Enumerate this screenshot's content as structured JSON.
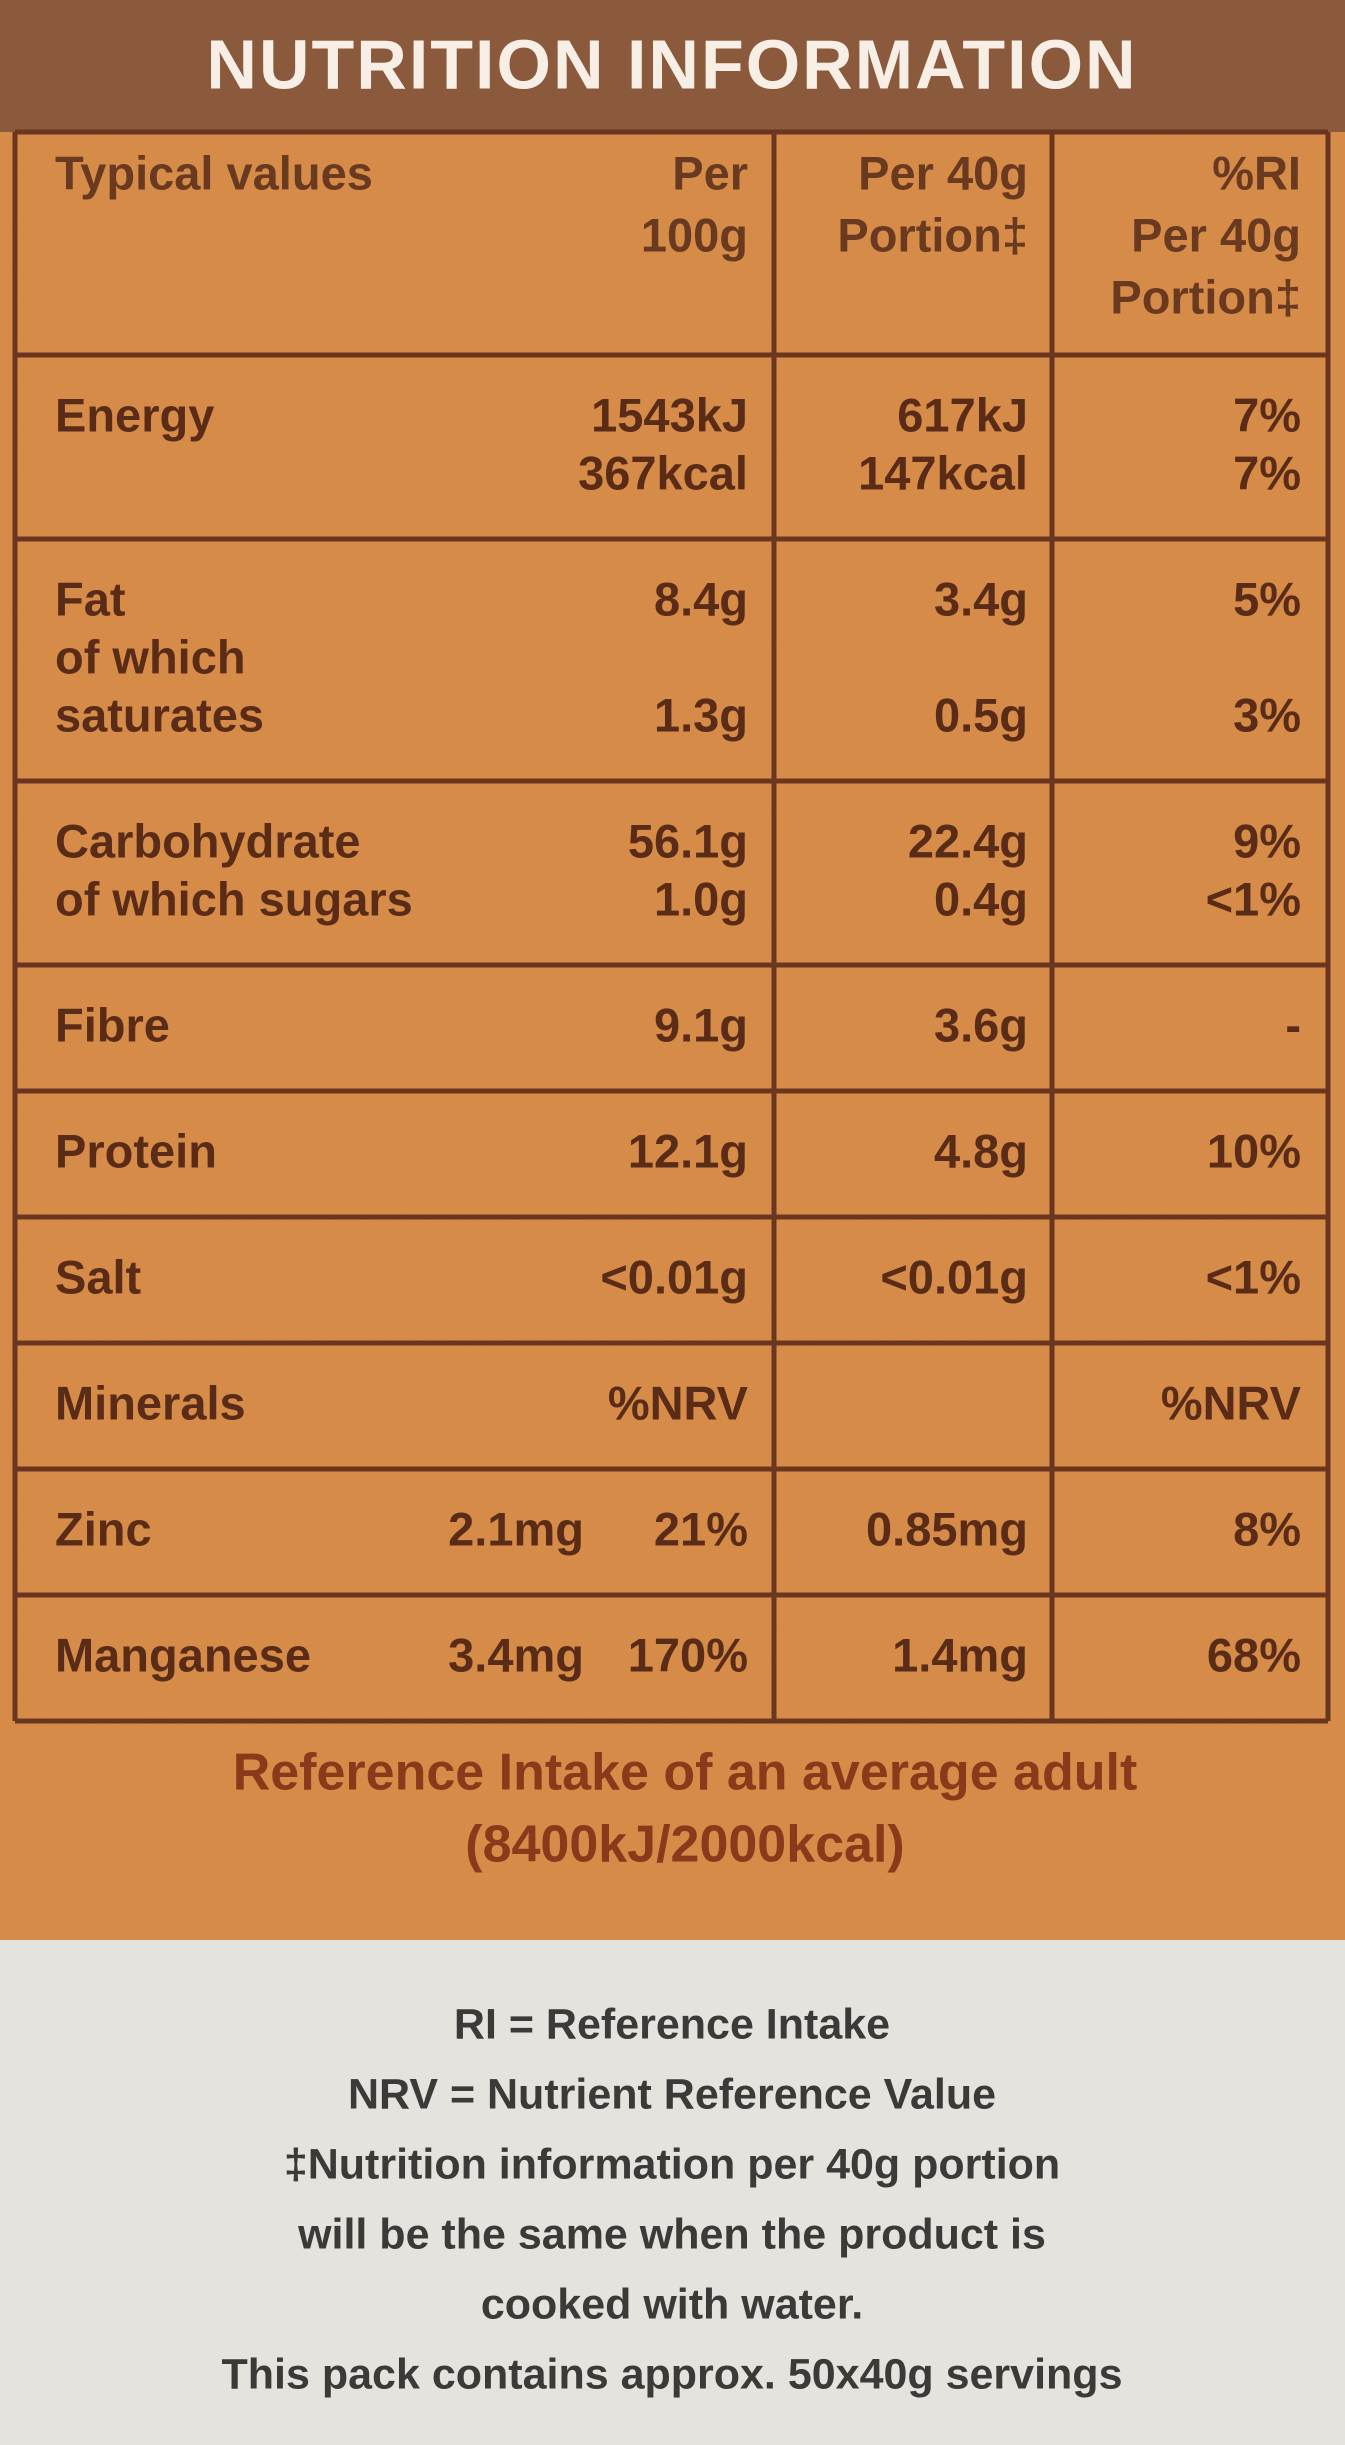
{
  "title": "NUTRITION INFORMATION",
  "table": {
    "columns": {
      "label": [
        "Typical values"
      ],
      "per100": [
        "Per",
        "100g"
      ],
      "portion": [
        "Per 40g",
        "Portion‡"
      ],
      "ri": [
        "%RI",
        "Per 40g",
        "Portion‡"
      ]
    },
    "rows": [
      {
        "entries": [
          {
            "label": [
              "Energy"
            ],
            "per100": [
              "1543kJ",
              "367kcal"
            ],
            "portion": [
              "617kJ",
              "147kcal"
            ],
            "ri": [
              "7%",
              "7%"
            ]
          }
        ]
      },
      {
        "entries": [
          {
            "label": [
              "Fat"
            ],
            "per100": [
              "8.4g"
            ],
            "portion": [
              "3.4g"
            ],
            "ri": [
              "5%"
            ]
          },
          {
            "label": [
              "of which",
              "saturates"
            ],
            "per100": [
              "1.3g"
            ],
            "portion": [
              "0.5g"
            ],
            "ri": [
              "3%"
            ]
          }
        ]
      },
      {
        "entries": [
          {
            "label": [
              "Carbohydrate"
            ],
            "per100": [
              "56.1g"
            ],
            "portion": [
              "22.4g"
            ],
            "ri": [
              "9%"
            ]
          },
          {
            "label": [
              "of which sugars"
            ],
            "per100": [
              "1.0g"
            ],
            "portion": [
              "0.4g"
            ],
            "ri": [
              "<1%"
            ]
          }
        ]
      },
      {
        "entries": [
          {
            "label": [
              "Fibre"
            ],
            "per100": [
              "9.1g"
            ],
            "portion": [
              "3.6g"
            ],
            "ri": [
              "-"
            ]
          }
        ]
      },
      {
        "entries": [
          {
            "label": [
              "Protein"
            ],
            "per100": [
              "12.1g"
            ],
            "portion": [
              "4.8g"
            ],
            "ri": [
              "10%"
            ]
          }
        ]
      },
      {
        "entries": [
          {
            "label": [
              "Salt"
            ],
            "per100": [
              "<0.01g"
            ],
            "portion": [
              "<0.01g"
            ],
            "ri": [
              "<1%"
            ]
          }
        ]
      },
      {
        "entries": [
          {
            "label": [
              "Minerals"
            ],
            "per100": [
              "%NRV"
            ],
            "ri": [
              "%NRV"
            ]
          }
        ]
      },
      {
        "entries": [
          {
            "label": [
              "Zinc"
            ],
            "amount": "2.1mg",
            "per100": [
              "21%"
            ],
            "portion": [
              "0.85mg"
            ],
            "ri": [
              "8%"
            ]
          }
        ]
      },
      {
        "entries": [
          {
            "label": [
              "Manganese"
            ],
            "amount": "3.4mg",
            "per100": [
              "170%"
            ],
            "portion": [
              "1.4mg"
            ],
            "ri": [
              "68%"
            ]
          }
        ]
      }
    ]
  },
  "reference": [
    "Reference Intake of an average adult",
    "(8400kJ/2000kcal)"
  ],
  "notes": [
    "RI = Reference Intake",
    "NRV = Nutrient Reference Value",
    "‡Nutrition information per 40g portion",
    "will be the same when the product is",
    "cooked with water.",
    "This pack contains approx. 50x40g servings"
  ]
}
